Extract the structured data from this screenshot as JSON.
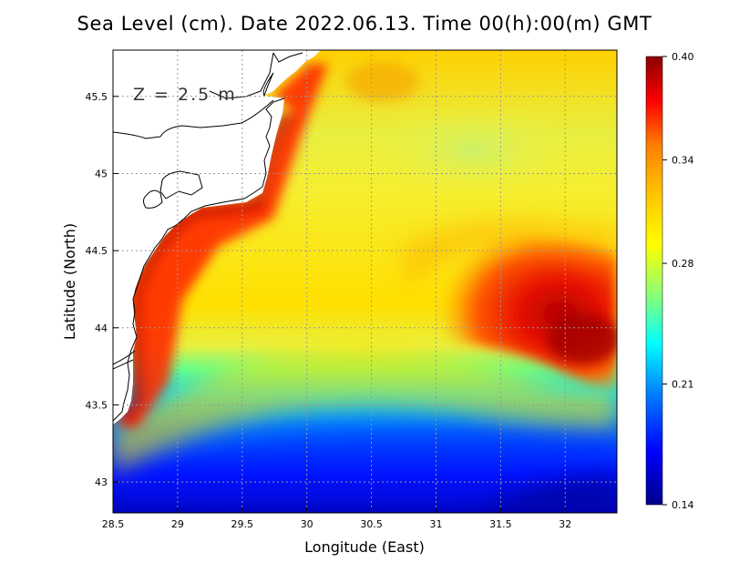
{
  "chart_data": {
    "type": "heatmap",
    "title": "Sea Level (cm). Date 2022.06.13. Time 00(h):00(m) GMT",
    "xlabel": "Longitude (East)",
    "ylabel": "Latitude (North)",
    "annotation": "Z = 2.5 m",
    "xlim": [
      28.5,
      32.4
    ],
    "ylim": [
      42.8,
      45.8
    ],
    "x_ticks": [
      "28.5",
      "29",
      "29.5",
      "30",
      "30.5",
      "31",
      "31.5",
      "32"
    ],
    "y_ticks": [
      "43",
      "43.5",
      "44",
      "44.5",
      "45",
      "45.5"
    ],
    "grid": true,
    "colorbar": {
      "ticks": [
        "0.40",
        "0.34",
        "0.28",
        "0.21",
        "0.14"
      ],
      "range": [
        0.14,
        0.4
      ],
      "colors": [
        "#00008b",
        "#0000ff",
        "#0080ff",
        "#00ffff",
        "#80ff80",
        "#ffff00",
        "#ffc000",
        "#ff8000",
        "#ff0000",
        "#8b0000"
      ]
    },
    "field_description_points": [
      {
        "lon": 32.3,
        "lat": 43.9,
        "value": 0.4
      },
      {
        "lon": 31.6,
        "lat": 44.1,
        "value": 0.38
      },
      {
        "lon": 31.0,
        "lat": 44.0,
        "value": 0.33
      },
      {
        "lon": 30.5,
        "lat": 44.5,
        "value": 0.32
      },
      {
        "lon": 29.8,
        "lat": 45.0,
        "value": 0.37
      },
      {
        "lon": 29.0,
        "lat": 44.7,
        "value": 0.37
      },
      {
        "lon": 28.6,
        "lat": 43.7,
        "value": 0.38
      },
      {
        "lon": 31.5,
        "lat": 45.1,
        "value": 0.29
      },
      {
        "lon": 30.0,
        "lat": 43.3,
        "value": 0.22
      },
      {
        "lon": 31.0,
        "lat": 43.0,
        "value": 0.17
      },
      {
        "lon": 32.3,
        "lat": 42.85,
        "value": 0.14
      },
      {
        "lon": 32.3,
        "lat": 45.7,
        "value": 0.33
      }
    ]
  }
}
